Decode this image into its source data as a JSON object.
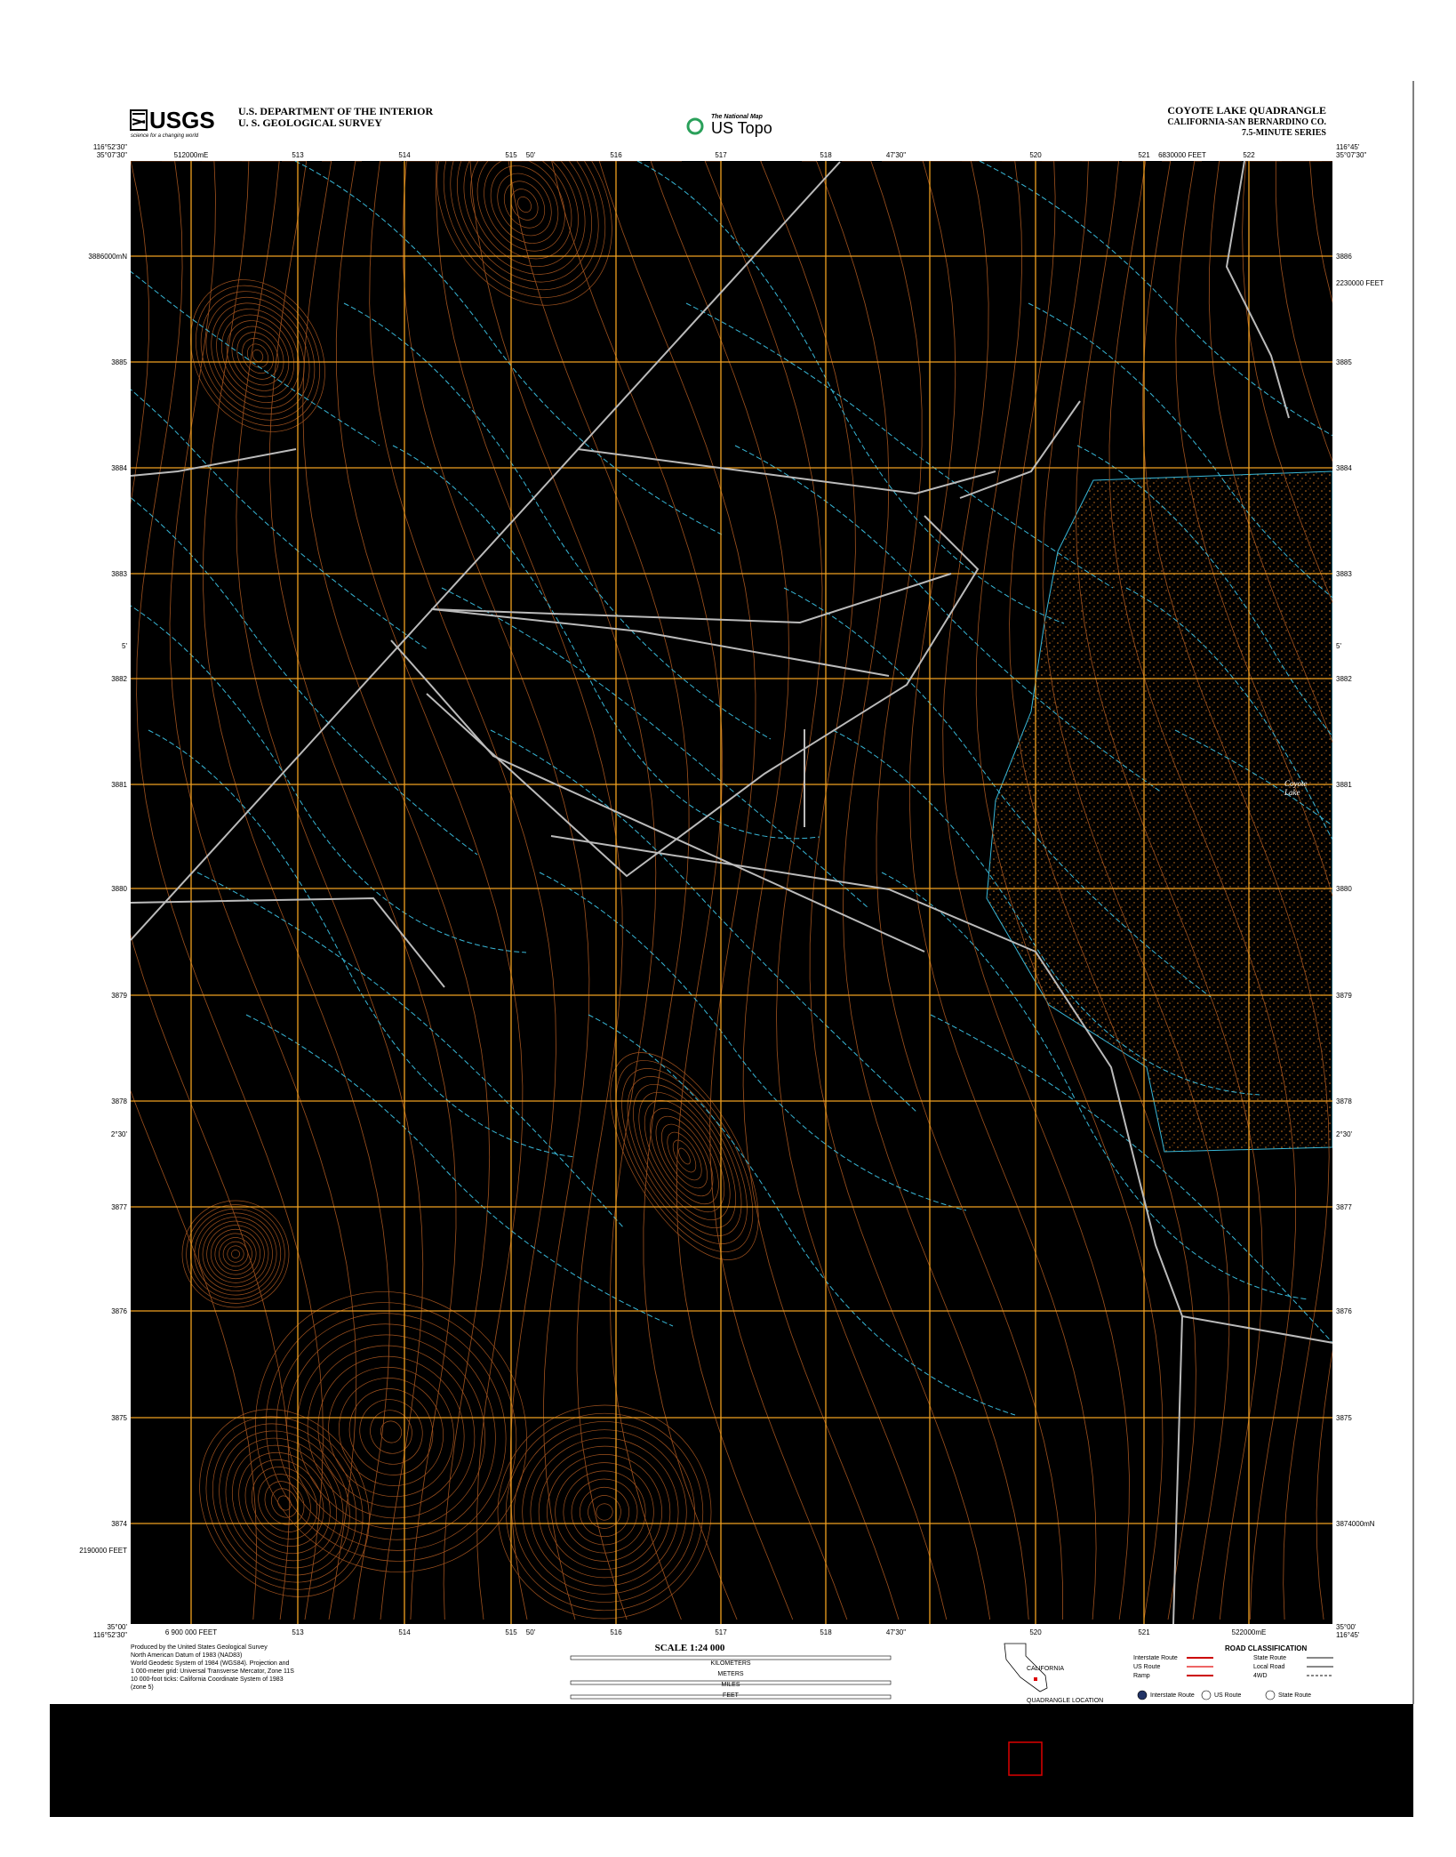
{
  "header": {
    "logo": "USGS",
    "tagline": "science for a changing world",
    "agency": [
      "U.S. DEPARTMENT OF THE INTERIOR",
      "U. S. GEOLOGICAL SURVEY"
    ],
    "program": [
      "The National Map",
      "US Topo"
    ],
    "title": [
      "COYOTE LAKE QUADRANGLE",
      "CALIFORNIA-SAN BERNARDINO CO.",
      "7.5-MINUTE SERIES"
    ]
  },
  "map": {
    "corners": [
      "35°07'30\"",
      "116°52'30\"",
      "116°45'",
      "35°07'30\"",
      "35°00'",
      "116°52'30\"",
      "116°45'",
      "35°00'"
    ],
    "top_labels": [
      "512000mE",
      "513",
      "514",
      "515",
      "50'",
      "516",
      "517",
      "518",
      "47'30\"",
      "520",
      "521",
      "6830000 FEET",
      "522"
    ],
    "bottom_labels": [
      "6 900 000 FEET",
      "513",
      "514",
      "515",
      "50'",
      "516",
      "517",
      "518",
      "47'30\"",
      "520",
      "521",
      "522000mE"
    ],
    "left_labels": [
      "3886000mN",
      "3885",
      "3884",
      "3883",
      "5'",
      "3882",
      "3881",
      "3880",
      "3879",
      "3878",
      "2°30'",
      "3877",
      "3876",
      "3875",
      "3874",
      "2190000 FEET"
    ],
    "right_labels": [
      "3886",
      "2230000 FEET",
      "3885",
      "3884",
      "3883",
      "5'",
      "3882",
      "3881",
      "3880",
      "3879",
      "3878",
      "2°30'",
      "3877",
      "3876",
      "3875",
      "3874000mN"
    ],
    "features": [
      "Coyote",
      "Lake"
    ]
  },
  "footer": {
    "credits": [
      "Produced by the United States Geological Survey",
      "North American Datum of 1983 (NAD83)",
      "World Geodetic System of 1984 (WGS84). Projection and",
      "1 000-meter grid: Universal Transverse Mercator, Zone 11S",
      "10 000-foot ticks: California Coordinate System of 1983",
      "(zone 5)"
    ],
    "scale": {
      "title": "SCALE 1:24 000",
      "units": [
        "KILOMETERS",
        "METERS",
        "MILES",
        "FEET"
      ]
    },
    "roads": {
      "title": "ROAD CLASSIFICATION",
      "items": [
        "Interstate Route",
        "US Route",
        "Ramp",
        "State Route",
        "Local Road",
        "4WD"
      ],
      "shields": [
        "Interstate Route",
        "US Route",
        "State Route"
      ]
    },
    "inset": [
      "CALIFORNIA",
      "QUADRANGLE LOCATION"
    ]
  }
}
